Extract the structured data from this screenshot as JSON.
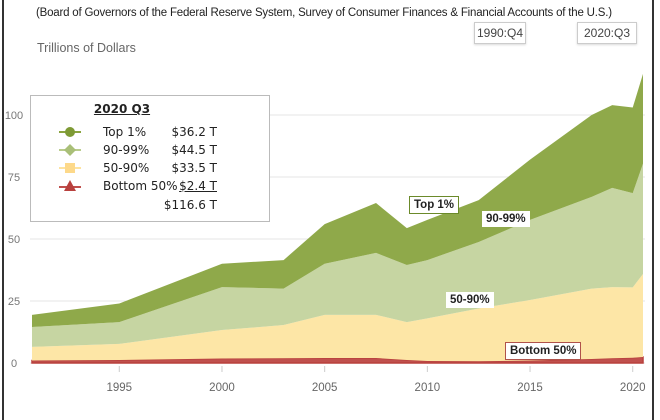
{
  "subtitle": "(Board of Governors of the Federal Reserve System, Survey of Consumer Finances & Financial Accounts of the U.S.)",
  "range_buttons": {
    "start": "1990:Q4",
    "end": "2020:Q3"
  },
  "unit_label": "Trillions of Dollars",
  "legend": {
    "title": "2020 Q3",
    "items": [
      {
        "name": "Top 1%",
        "value": "$36.2 T",
        "marker": "circle",
        "color": "#8aa43f"
      },
      {
        "name": "90-99%",
        "value": "$44.5 T",
        "marker": "diamond",
        "color": "#b9cc8c"
      },
      {
        "name": "50-90%",
        "value": "$33.5 T",
        "marker": "square",
        "color": "#fde3a0"
      },
      {
        "name": "Bottom 50%",
        "value": "$2.4 T",
        "marker": "triangle",
        "color": "#c0504d"
      }
    ],
    "total": "$116.6 T"
  },
  "annotations": {
    "top1": "Top 1%",
    "p90_99": "90-99%",
    "p50_90": "50-90%",
    "bottom50": "Bottom 50%"
  },
  "chart_data": {
    "type": "area",
    "stacked": true,
    "ylabel": "Trillions of Dollars",
    "ylim": [
      0,
      120
    ],
    "yticks": [
      0,
      25,
      50,
      75,
      100
    ],
    "xticks": [
      1995,
      2000,
      2005,
      2010,
      2015,
      2020
    ],
    "xlim": [
      1990.75,
      2020.5
    ],
    "grid": true,
    "legend_placement": "top-left",
    "x": [
      1990.75,
      1995,
      2000,
      2003,
      2005,
      2007.5,
      2009,
      2010,
      2012.5,
      2015,
      2018,
      2019,
      2020,
      2020.5
    ],
    "series": [
      {
        "name": "Bottom 50%",
        "color": "#c0504d",
        "values": [
          1.0,
          1.2,
          1.8,
          1.9,
          2.0,
          2.0,
          1.2,
          0.8,
          0.7,
          1.0,
          1.6,
          1.9,
          2.1,
          2.4
        ]
      },
      {
        "name": "50-90%",
        "color": "#fde6a6",
        "values": [
          5.5,
          6.5,
          11.5,
          13.4,
          17.4,
          17.4,
          15.3,
          17.2,
          21.3,
          24.4,
          28.4,
          28.7,
          28.4,
          33.5
        ]
      },
      {
        "name": "90-99%",
        "color": "#c6d5a2",
        "values": [
          8.0,
          8.8,
          17.3,
          14.7,
          20.6,
          25.0,
          23.0,
          23.5,
          26.8,
          32.3,
          37.0,
          40.0,
          38.0,
          44.5
        ]
      },
      {
        "name": "Top 1%",
        "color": "#8fa94a",
        "values": [
          4.9,
          7.5,
          9.4,
          11.5,
          16.0,
          20.1,
          14.9,
          16.2,
          16.9,
          24.3,
          33.0,
          33.4,
          34.5,
          36.2
        ]
      }
    ]
  }
}
